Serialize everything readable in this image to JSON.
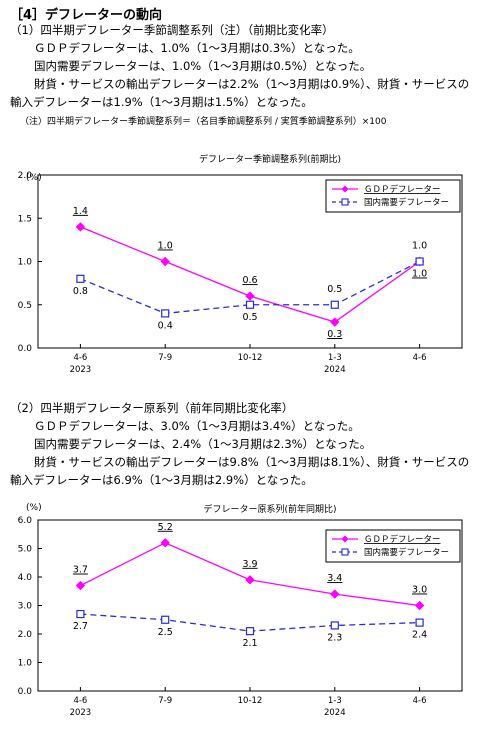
{
  "section_title": "［4］デフレーターの動向",
  "part1": {
    "heading": "（1）四半期デフレーター季節調整系列（注）（前期比変化率）",
    "lines": [
      "ＧＤＰデフレーターは、1.0%（1～3月期は0.3%）となった。",
      "国内需要デフレーターは、1.0%（1～3月期は0.5%）となった。",
      "財貨・サービスの輸出デフレーターは2.2%（1～3月期は0.9%）、財貨・サービスの",
      "輸入デフレーターは1.9%（1～3月期は1.5%）となった。"
    ],
    "note": "（注）四半期デフレーター季節調整系列＝（名目季節調整系列 / 実質季節調整系列）×100"
  },
  "part2": {
    "heading": "（2）四半期デフレーター原系列（前年同期比変化率）",
    "lines": [
      "ＧＤＰデフレーターは、3.0%（1～3月期は3.4%）となった。",
      "国内需要デフレーターは、2.4%（1～3月期は2.3%）となった。",
      "財貨・サービスの輸出デフレーターは9.8%（1～3月期は8.1%）、財貨・サービスの",
      "輸入デフレーターは6.9%（1～3月期は2.9%）となった。"
    ]
  },
  "chart_data": [
    {
      "type": "line",
      "title": "デフレーター季節調整系列(前期比)",
      "ylabel": "(%)",
      "ylim": [
        0.0,
        2.0
      ],
      "yticks": [
        "0.0",
        "0.5",
        "1.0",
        "1.5",
        "2.0"
      ],
      "categories": [
        "4-6",
        "7-9",
        "10-12",
        "1-3",
        "4-6"
      ],
      "year_labels": [
        "2023",
        "",
        "",
        "2024",
        ""
      ],
      "legend": "top-right",
      "series": [
        {
          "name": "ＧＤＰデフレーター",
          "color": "#ff00ff",
          "marker": "diamond",
          "dash": false,
          "values": [
            1.4,
            1.0,
            0.6,
            0.3,
            1.0
          ],
          "labels": [
            "1.4",
            "1.0",
            "0.6",
            "0.3",
            "1.0"
          ]
        },
        {
          "name": "国内需要デフレーター",
          "color": "#2b2bd6",
          "marker": "square",
          "dash": true,
          "values": [
            0.8,
            0.4,
            0.5,
            0.5,
            1.0
          ],
          "labels": [
            "0.8",
            "0.4",
            "0.5",
            "0.5",
            "1.0"
          ]
        }
      ]
    },
    {
      "type": "line",
      "title": "デフレーター原系列(前年同期比)",
      "ylabel": "(%)",
      "ylim": [
        0.0,
        6.0
      ],
      "yticks": [
        "0.0",
        "1.0",
        "2.0",
        "3.0",
        "4.0",
        "5.0",
        "6.0"
      ],
      "categories": [
        "4-6",
        "7-9",
        "10-12",
        "1-3",
        "4-6"
      ],
      "year_labels": [
        "2023",
        "",
        "",
        "2024",
        ""
      ],
      "legend": "top-right",
      "series": [
        {
          "name": "ＧＤＰデフレーター",
          "color": "#ff00ff",
          "marker": "diamond",
          "dash": false,
          "values": [
            3.7,
            5.2,
            3.9,
            3.4,
            3.0
          ],
          "labels": [
            "3.7",
            "5.2",
            "3.9",
            "3.4",
            "3.0"
          ]
        },
        {
          "name": "国内需要デフレーター",
          "color": "#2b2bd6",
          "marker": "square",
          "dash": true,
          "values": [
            2.7,
            2.5,
            2.1,
            2.3,
            2.4
          ],
          "labels": [
            "2.7",
            "2.5",
            "2.1",
            "2.3",
            "2.4"
          ]
        }
      ]
    }
  ]
}
